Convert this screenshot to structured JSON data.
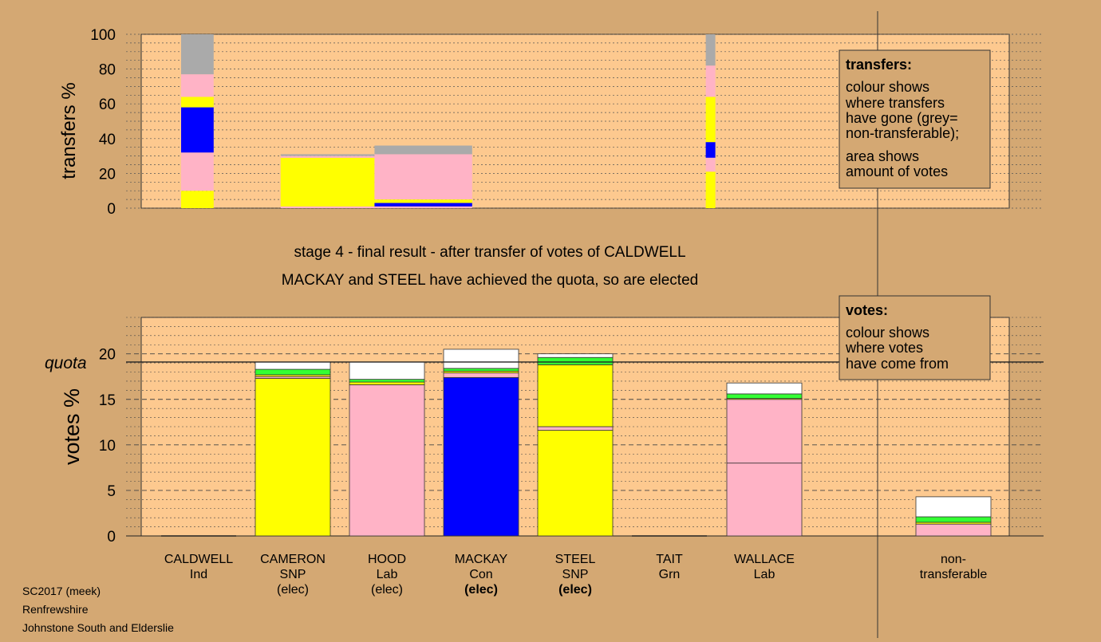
{
  "colors": {
    "background": "#d4a873",
    "plot_area": "#fdc98f",
    "legend_box": "#d4a873",
    "SNP": "#ffff00",
    "Lab": "#ffb3c6",
    "Con": "#0000ff",
    "Grn": "#33ff33",
    "Ind": "#ffffff",
    "non_transferable": "#aaaaaa"
  },
  "chart_data": [
    {
      "type": "bar",
      "subtype": "stacked-variable-width",
      "ylabel": "transfers %",
      "ylim": [
        0,
        100
      ],
      "yticks": [
        0,
        20,
        40,
        60,
        80,
        100
      ],
      "grid": true,
      "columns": [
        {
          "x_from": 0,
          "x_to": 0.85,
          "segments": [
            {
              "party": "SNP",
              "from": 0,
              "to": 10
            },
            {
              "party": "Lab",
              "from": 10,
              "to": 32
            },
            {
              "party": "Con",
              "from": 32,
              "to": 58
            },
            {
              "party": "SNP",
              "from": 58,
              "to": 64
            },
            {
              "party": "Lab",
              "from": 64,
              "to": 77
            },
            {
              "party": "non_transferable",
              "from": 77,
              "to": 100
            }
          ]
        },
        {
          "x_from": 2.6,
          "x_to": 5.05,
          "segments": [
            {
              "party": "Lab",
              "from": 0,
              "to": 1
            },
            {
              "party": "SNP",
              "from": 1,
              "to": 29
            },
            {
              "party": "Lab",
              "from": 29,
              "to": 30
            },
            {
              "party": "non_transferable",
              "from": 30,
              "to": 31
            }
          ]
        },
        {
          "x_from": 5.05,
          "x_to": 7.6,
          "segments": [
            {
              "party": "Lab",
              "from": 0,
              "to": 1
            },
            {
              "party": "Con",
              "from": 1,
              "to": 3
            },
            {
              "party": "SNP",
              "from": 3,
              "to": 5
            },
            {
              "party": "Lab",
              "from": 5,
              "to": 31
            },
            {
              "party": "non_transferable",
              "from": 31,
              "to": 36
            }
          ]
        },
        {
          "x_from": 13.7,
          "x_to": 13.95,
          "segments": [
            {
              "party": "SNP",
              "from": 0,
              "to": 21
            },
            {
              "party": "Lab",
              "from": 21,
              "to": 29
            },
            {
              "party": "Con",
              "from": 29,
              "to": 38
            },
            {
              "party": "SNP",
              "from": 38,
              "to": 64
            },
            {
              "party": "Lab",
              "from": 64,
              "to": 82
            },
            {
              "party": "non_transferable",
              "from": 82,
              "to": 100
            }
          ]
        }
      ]
    },
    {
      "type": "bar",
      "subtype": "stacked",
      "ylabel": "votes %",
      "ylim": [
        0,
        24
      ],
      "yticks": [
        0,
        5,
        10,
        15,
        20
      ],
      "quota": 19.1,
      "quota_label": "quota",
      "grid": true,
      "categories": [
        "CALDWELL",
        "CAMERON",
        "HOOD",
        "MACKAY",
        "STEEL",
        "TAIT",
        "WALLACE",
        "non-transferable"
      ],
      "stacks": [
        [],
        [
          {
            "party": "SNP",
            "value": 17.3
          },
          {
            "party": "Lab",
            "value": 0.2
          },
          {
            "party": "SNP",
            "value": 0.2
          },
          {
            "party": "Grn",
            "value": 0.6
          },
          {
            "party": "Ind",
            "value": 0.8
          }
        ],
        [
          {
            "party": "Lab",
            "value": 16.6
          },
          {
            "party": "SNP",
            "value": 0.3
          },
          {
            "party": "Grn",
            "value": 0.3
          },
          {
            "party": "Ind",
            "value": 1.9
          }
        ],
        [
          {
            "party": "Con",
            "value": 17.4
          },
          {
            "party": "Lab",
            "value": 0.5
          },
          {
            "party": "SNP",
            "value": 0.2
          },
          {
            "party": "Grn",
            "value": 0.3
          },
          {
            "party": "Ind",
            "value": 2.1
          }
        ],
        [
          {
            "party": "SNP",
            "value": 11.6
          },
          {
            "party": "Lab",
            "value": 0.4
          },
          {
            "party": "SNP",
            "value": 6.8
          },
          {
            "party": "Grn",
            "value": 0.8
          },
          {
            "party": "Ind",
            "value": 0.4
          }
        ],
        [],
        [
          {
            "party": "Lab",
            "value": 8.0
          },
          {
            "party": "Lab",
            "value": 7.0
          },
          {
            "party": "SNP",
            "value": 0.1
          },
          {
            "party": "Grn",
            "value": 0.5
          },
          {
            "party": "Ind",
            "value": 1.2
          }
        ],
        [
          {
            "party": "Lab",
            "value": 1.3
          },
          {
            "party": "SNP",
            "value": 0.2
          },
          {
            "party": "Grn",
            "value": 0.6
          },
          {
            "party": "Ind",
            "value": 2.2
          }
        ]
      ]
    }
  ],
  "candidates": [
    {
      "name": "CALDWELL",
      "party": "Ind",
      "elected": ""
    },
    {
      "name": "CAMERON",
      "party": "SNP",
      "elected": "(elec)"
    },
    {
      "name": "HOOD",
      "party": "Lab",
      "elected": "(elec)"
    },
    {
      "name": "MACKAY",
      "party": "Con",
      "elected": "(elec)"
    },
    {
      "name": "STEEL",
      "party": "SNP",
      "elected": "(elec)"
    },
    {
      "name": "TAIT",
      "party": "Grn",
      "elected": ""
    },
    {
      "name": "WALLACE",
      "party": "Lab",
      "elected": ""
    }
  ],
  "nontransferable_label": [
    "non-",
    "transferable"
  ],
  "stage_text": "stage 4 - final result - after transfer of votes of CALDWELL",
  "result_text": "MACKAY and STEEL have achieved the quota, so are elected",
  "transfers_legend": {
    "title": "transfers:",
    "lines_a": [
      "colour shows",
      "where transfers",
      "have gone (grey=",
      "non-transferable);"
    ],
    "lines_b": [
      "area shows",
      "amount of votes"
    ]
  },
  "votes_legend": {
    "title": "votes:",
    "lines": [
      "colour shows",
      "where votes",
      "have come from"
    ]
  },
  "footer": [
    "SC2017 (meek)",
    "Renfrewshire",
    "Johnstone South and Elderslie"
  ]
}
